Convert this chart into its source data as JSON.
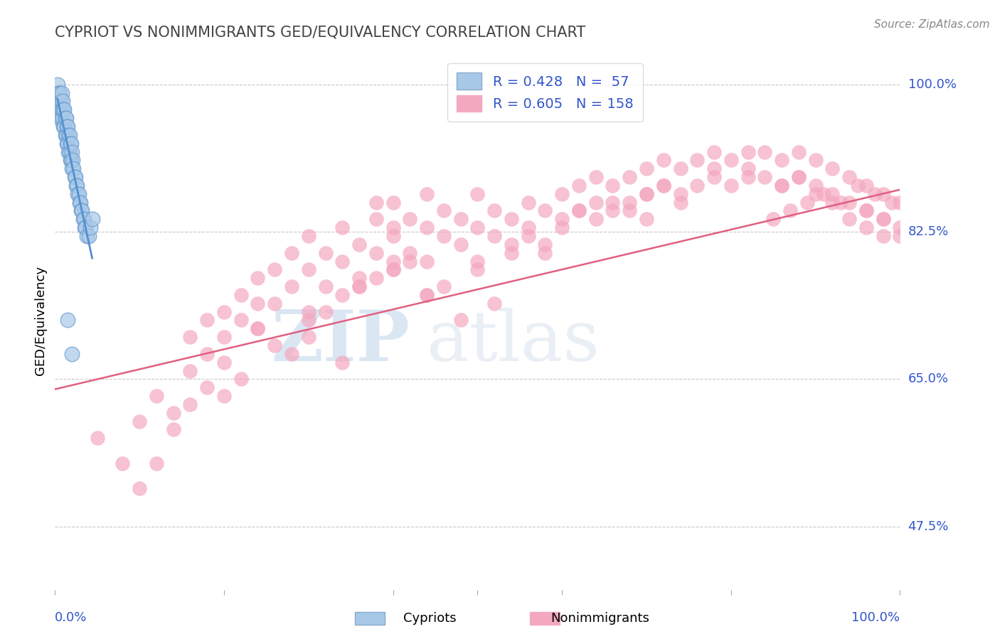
{
  "title": "CYPRIOT VS NONIMMIGRANTS GED/EQUIVALENCY CORRELATION CHART",
  "source": "Source: ZipAtlas.com",
  "ylabel": "GED/Equivalency",
  "cypriot_R": 0.428,
  "cypriot_N": 57,
  "nonimm_R": 0.605,
  "nonimm_N": 158,
  "legend_labels": [
    "Cypriots",
    "Nonimmigrants"
  ],
  "cypriot_color": "#a8c8e8",
  "nonimm_color": "#f4a8c0",
  "trend_cypriot_color": "#5090d0",
  "trend_nonimm_color": "#e06080",
  "grid_color": "#c8c8c8",
  "axis_label_color": "#3355cc",
  "title_color": "#444444",
  "background_color": "#ffffff",
  "xlim": [
    0.0,
    1.0
  ],
  "ylim": [
    0.4,
    1.04
  ],
  "yticks": [
    0.475,
    0.65,
    0.825,
    1.0
  ],
  "ytick_labels": [
    "47.5%",
    "65.0%",
    "82.5%",
    "100.0%"
  ],
  "cypriot_scatter_x": [
    0.003,
    0.004,
    0.004,
    0.005,
    0.005,
    0.006,
    0.006,
    0.007,
    0.007,
    0.008,
    0.008,
    0.009,
    0.009,
    0.01,
    0.01,
    0.011,
    0.011,
    0.012,
    0.012,
    0.013,
    0.013,
    0.014,
    0.014,
    0.015,
    0.015,
    0.016,
    0.016,
    0.017,
    0.017,
    0.018,
    0.018,
    0.019,
    0.019,
    0.02,
    0.02,
    0.021,
    0.022,
    0.023,
    0.024,
    0.025,
    0.026,
    0.027,
    0.028,
    0.029,
    0.03,
    0.031,
    0.032,
    0.033,
    0.034,
    0.035,
    0.036,
    0.038,
    0.04,
    0.042,
    0.044,
    0.015,
    0.02
  ],
  "cypriot_scatter_y": [
    1.0,
    0.99,
    0.97,
    0.98,
    0.96,
    0.99,
    0.97,
    0.98,
    0.96,
    0.99,
    0.97,
    0.98,
    0.96,
    0.97,
    0.95,
    0.97,
    0.95,
    0.96,
    0.94,
    0.96,
    0.94,
    0.95,
    0.93,
    0.95,
    0.93,
    0.94,
    0.92,
    0.94,
    0.92,
    0.93,
    0.91,
    0.93,
    0.91,
    0.92,
    0.9,
    0.91,
    0.9,
    0.89,
    0.89,
    0.88,
    0.88,
    0.87,
    0.87,
    0.86,
    0.86,
    0.85,
    0.85,
    0.84,
    0.84,
    0.83,
    0.83,
    0.82,
    0.82,
    0.83,
    0.84,
    0.72,
    0.68
  ],
  "nonimm_scatter_x": [
    0.05,
    0.08,
    0.1,
    0.12,
    0.14,
    0.16,
    0.16,
    0.18,
    0.18,
    0.2,
    0.2,
    0.22,
    0.22,
    0.24,
    0.24,
    0.24,
    0.26,
    0.26,
    0.28,
    0.28,
    0.3,
    0.3,
    0.3,
    0.32,
    0.32,
    0.34,
    0.34,
    0.34,
    0.36,
    0.36,
    0.38,
    0.38,
    0.4,
    0.4,
    0.4,
    0.42,
    0.42,
    0.44,
    0.44,
    0.44,
    0.46,
    0.46,
    0.48,
    0.48,
    0.5,
    0.5,
    0.5,
    0.52,
    0.52,
    0.54,
    0.54,
    0.56,
    0.56,
    0.58,
    0.58,
    0.6,
    0.6,
    0.62,
    0.62,
    0.64,
    0.64,
    0.66,
    0.66,
    0.68,
    0.68,
    0.7,
    0.7,
    0.7,
    0.72,
    0.72,
    0.74,
    0.74,
    0.76,
    0.76,
    0.78,
    0.78,
    0.8,
    0.8,
    0.82,
    0.82,
    0.84,
    0.84,
    0.86,
    0.86,
    0.88,
    0.88,
    0.9,
    0.9,
    0.92,
    0.92,
    0.94,
    0.94,
    0.96,
    0.96,
    0.98,
    0.98,
    1.0,
    1.0,
    0.38,
    0.4,
    0.12,
    0.2,
    0.28,
    0.14,
    0.22,
    0.16,
    0.2,
    0.24,
    0.1,
    0.32,
    0.36,
    0.4,
    0.44,
    0.48,
    0.52,
    0.38,
    0.42,
    0.46,
    0.3,
    0.34,
    0.18,
    0.26,
    0.3,
    0.36,
    0.4,
    0.44,
    0.5,
    0.54,
    0.56,
    0.58,
    0.6,
    0.62,
    0.64,
    0.66,
    0.68,
    0.7,
    0.72,
    0.74,
    0.78,
    0.82,
    0.86,
    0.88,
    0.9,
    0.92,
    0.94,
    0.96,
    0.98,
    1.0,
    0.95,
    0.97,
    0.99,
    0.96,
    0.98,
    0.93,
    0.91,
    0.89,
    0.87,
    0.85
  ],
  "nonimm_scatter_y": [
    0.58,
    0.55,
    0.6,
    0.63,
    0.61,
    0.66,
    0.7,
    0.68,
    0.72,
    0.7,
    0.73,
    0.72,
    0.75,
    0.74,
    0.77,
    0.71,
    0.74,
    0.78,
    0.76,
    0.8,
    0.78,
    0.72,
    0.82,
    0.8,
    0.76,
    0.79,
    0.83,
    0.75,
    0.81,
    0.77,
    0.8,
    0.84,
    0.82,
    0.78,
    0.86,
    0.84,
    0.8,
    0.83,
    0.79,
    0.87,
    0.85,
    0.82,
    0.84,
    0.81,
    0.83,
    0.79,
    0.87,
    0.85,
    0.82,
    0.84,
    0.8,
    0.86,
    0.83,
    0.85,
    0.81,
    0.87,
    0.84,
    0.88,
    0.85,
    0.89,
    0.86,
    0.88,
    0.85,
    0.89,
    0.86,
    0.9,
    0.87,
    0.84,
    0.91,
    0.88,
    0.9,
    0.87,
    0.91,
    0.88,
    0.92,
    0.89,
    0.91,
    0.88,
    0.92,
    0.89,
    0.92,
    0.89,
    0.91,
    0.88,
    0.92,
    0.89,
    0.91,
    0.88,
    0.9,
    0.87,
    0.89,
    0.86,
    0.88,
    0.85,
    0.87,
    0.84,
    0.86,
    0.83,
    0.86,
    0.83,
    0.55,
    0.63,
    0.68,
    0.59,
    0.65,
    0.62,
    0.67,
    0.71,
    0.52,
    0.73,
    0.76,
    0.78,
    0.75,
    0.72,
    0.74,
    0.77,
    0.79,
    0.76,
    0.7,
    0.67,
    0.64,
    0.69,
    0.73,
    0.76,
    0.79,
    0.75,
    0.78,
    0.81,
    0.82,
    0.8,
    0.83,
    0.85,
    0.84,
    0.86,
    0.85,
    0.87,
    0.88,
    0.86,
    0.9,
    0.9,
    0.88,
    0.89,
    0.87,
    0.86,
    0.84,
    0.83,
    0.82,
    0.82,
    0.88,
    0.87,
    0.86,
    0.85,
    0.84,
    0.86,
    0.87,
    0.86,
    0.85,
    0.84
  ],
  "nonimm_trend_x0": 0.0,
  "nonimm_trend_y0": 0.638,
  "nonimm_trend_x1": 1.0,
  "nonimm_trend_y1": 0.875
}
